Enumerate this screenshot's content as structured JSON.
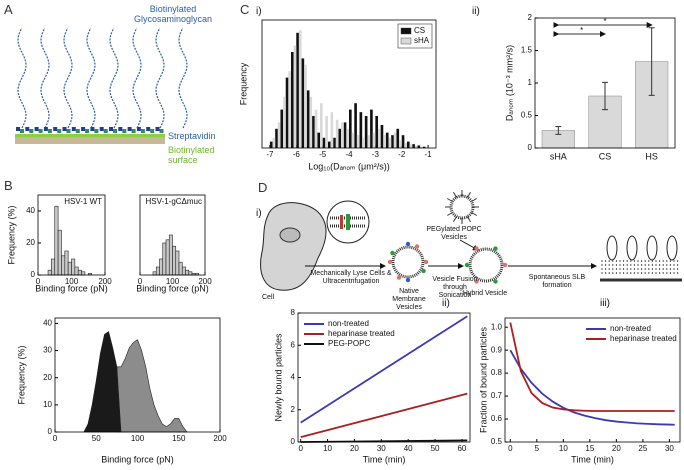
{
  "panel_labels": [
    "A",
    "B",
    "C",
    "D"
  ],
  "sub_labels": [
    "i)",
    "ii)",
    "i)",
    "ii)",
    "iii)"
  ],
  "diagram_a": {
    "glycan": "Biotinylated Glycosaminoglycan",
    "protein": "Streptavidin",
    "surface": "Biotinylated surface"
  },
  "diagram_d": {
    "cell": "Cell",
    "step1": "Mechanically Lyse Cells & Ultracentrifugation",
    "native": "Native Membrane Vesicles",
    "peg": "PEGylated POPC Vesicles",
    "step2": "Vesicle Fusion through Sonication",
    "hybrid": "Hybrid Vesicle",
    "step3": "Spontaneous SLB formation"
  },
  "chart_data": [
    {
      "type": "histogram",
      "title": "HSV-1 WT",
      "x_label": "Binding force (pN)",
      "y_label": "Frequency (%)",
      "bins": [
        30,
        40,
        50,
        60,
        70,
        80,
        90,
        100,
        110,
        120,
        130,
        140,
        150,
        160
      ],
      "counts": [
        3,
        10,
        43,
        28,
        12,
        15,
        8,
        10,
        5,
        3,
        2,
        0,
        1
      ],
      "color": "#c8c8c8",
      "xlim": [
        0,
        200
      ],
      "xticks": [
        0,
        100,
        200
      ],
      "ylim": [
        0,
        50
      ],
      "yticks": [
        0,
        20,
        40
      ]
    },
    {
      "type": "histogram",
      "title": "HSV-1-gCΔmuc",
      "x_label": "Binding force (pN)",
      "bins": [
        40,
        50,
        60,
        70,
        80,
        90,
        100,
        110,
        120,
        130,
        140,
        150,
        160,
        170,
        180
      ],
      "counts": [
        2,
        5,
        10,
        20,
        22,
        25,
        18,
        15,
        8,
        5,
        3,
        2,
        1,
        1
      ],
      "color": "#c8c8c8",
      "xlim": [
        0,
        200
      ],
      "xticks": [
        0,
        100,
        200
      ],
      "ylim": [
        0,
        50
      ]
    },
    {
      "type": "area",
      "x_label": "Binding force (pN)",
      "y_label": "Frequency (%)",
      "series": [
        {
          "color": "#8c8c8c",
          "x": [
            75,
            80,
            85,
            90,
            95,
            100,
            105,
            110,
            115,
            120,
            125,
            130,
            135,
            140,
            145,
            150,
            155,
            160
          ],
          "values": [
            24,
            24,
            27,
            31,
            33,
            34,
            30,
            24,
            16,
            10,
            6,
            3,
            2,
            3,
            5,
            5,
            2,
            0
          ]
        },
        {
          "color": "#1a1a1a",
          "x": [
            35,
            40,
            45,
            50,
            55,
            60,
            65,
            70,
            75,
            80
          ],
          "values": [
            0,
            3,
            10,
            19,
            29,
            36,
            37,
            31,
            24,
            0
          ]
        }
      ],
      "xlim": [
        0,
        200
      ],
      "xticks": [
        0,
        50,
        100,
        150,
        200
      ],
      "ylim": [
        0,
        42
      ],
      "yticks": [
        0,
        10,
        20,
        30,
        40
      ]
    },
    {
      "type": "histogram",
      "x_label": "Log₁₀(Dₐₙₒₘ (μm²/s))",
      "y_label": "Frequency",
      "bins": [
        -7,
        -6.8,
        -6.6,
        -6.4,
        -6.2,
        -6,
        -5.8,
        -5.6,
        -5.4,
        -5.2,
        -5,
        -4.8,
        -4.6,
        -4.4,
        -4.2,
        -4,
        -3.8,
        -3.6,
        -3.4,
        -3.2,
        -3,
        -2.8,
        -2.6,
        -2.4,
        -2.2,
        -2,
        -1.8,
        -1.6,
        -1.4,
        -1.2,
        -1
      ],
      "series": [
        {
          "name": "CS",
          "color": "#111111",
          "values": [
            5,
            15,
            30,
            55,
            75,
            90,
            70,
            45,
            25,
            12,
            8,
            5,
            8,
            15,
            20,
            30,
            35,
            28,
            25,
            30,
            25,
            18,
            12,
            10,
            15,
            10,
            5,
            3,
            2,
            1
          ]
        },
        {
          "name": "sHA",
          "color": "#d9d9d9",
          "values": [
            8,
            20,
            40,
            60,
            80,
            92,
            65,
            40,
            30,
            35,
            25,
            28,
            22,
            20,
            15,
            12,
            10,
            8,
            10,
            12,
            15,
            10,
            8,
            12,
            6,
            4,
            3,
            2,
            1,
            0
          ]
        }
      ],
      "legend": "upper right",
      "legend_frame": true,
      "xlim": [
        -7.3,
        -0.7
      ],
      "xticks": [
        -7,
        -6,
        -5,
        -4,
        -3,
        -2,
        -1
      ],
      "ylim": [
        0,
        100
      ]
    },
    {
      "type": "bar",
      "y_label": "Dₐₙₒₘ (10⁻³ mm²/s)",
      "categories": [
        "sHA",
        "CS",
        "HS"
      ],
      "values": [
        0.27,
        0.8,
        1.33
      ],
      "errors": [
        0.06,
        0.21,
        0.52
      ],
      "color": "#d9d9d9",
      "annotations": [
        "*",
        "*"
      ],
      "ylim": [
        0,
        2
      ],
      "yticks": [
        0,
        0.5,
        1,
        1.5,
        2
      ]
    },
    {
      "type": "line",
      "x_label": "Time (min)",
      "y_label": "Newly bound particles",
      "x": [
        0,
        62
      ],
      "series": [
        {
          "name": "non-treated",
          "color": "#3a3ab8",
          "values": [
            1.2,
            7.8
          ]
        },
        {
          "name": "heparinase treated",
          "color": "#a82020",
          "values": [
            0.3,
            3.0
          ]
        },
        {
          "name": "PEG-POPC",
          "color": "#111111",
          "values": [
            0.0,
            0.1
          ]
        }
      ],
      "legend": "upper left",
      "xlim": [
        -1,
        63
      ],
      "xticks": [
        0,
        10,
        20,
        30,
        40,
        50,
        60
      ],
      "ylim": [
        0,
        8
      ],
      "yticks": [
        0,
        2,
        4,
        6,
        8
      ]
    },
    {
      "type": "line",
      "x_label": "Time (min)",
      "y_label": "Fraction of bound particles",
      "x": [
        0,
        2,
        4,
        6,
        8,
        10,
        12,
        14,
        16,
        18,
        20,
        22,
        24,
        26,
        28,
        30,
        31
      ],
      "series": [
        {
          "name": "non-treated",
          "color": "#3a3ab8",
          "values": [
            0.9,
            0.818,
            0.758,
            0.711,
            0.676,
            0.649,
            0.629,
            0.615,
            0.604,
            0.595,
            0.589,
            0.585,
            0.581,
            0.579,
            0.577,
            0.576,
            0.575
          ]
        },
        {
          "name": "heparinase treated",
          "color": "#a82020",
          "values": [
            1.02,
            0.808,
            0.713,
            0.67,
            0.65,
            0.642,
            0.638,
            0.636,
            0.635,
            0.635,
            0.635,
            0.635,
            0.635,
            0.635,
            0.635,
            0.635,
            0.635
          ]
        }
      ],
      "legend": "upper right",
      "xlim": [
        -1,
        32
      ],
      "xticks": [
        0,
        5,
        10,
        15,
        20,
        25,
        30
      ],
      "ylim": [
        0.5,
        1.04
      ],
      "yticks": [
        0.5,
        0.6,
        0.7,
        0.8,
        0.9,
        {
          "value": 1,
          "label": "1.0"
        }
      ]
    }
  ]
}
